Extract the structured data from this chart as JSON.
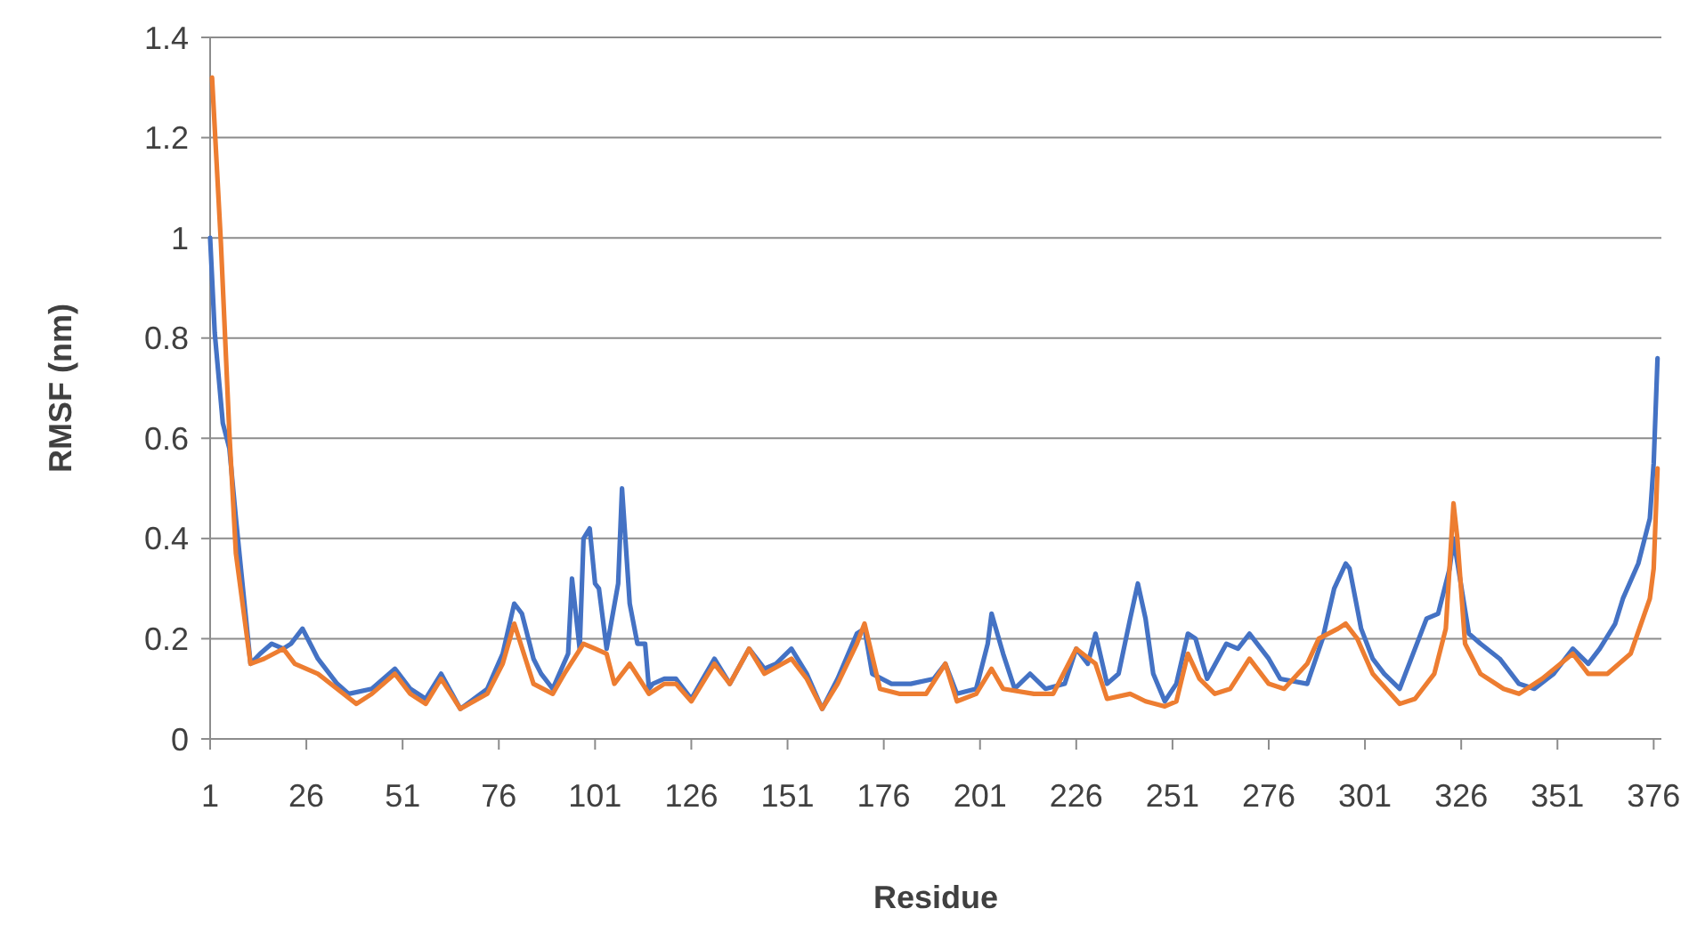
{
  "chart_data": {
    "type": "line",
    "xlabel": "Residue",
    "ylabel": "RMSF (nm)",
    "xlim": [
      1,
      378
    ],
    "xticks": [
      1,
      26,
      51,
      76,
      101,
      126,
      151,
      176,
      201,
      226,
      251,
      276,
      301,
      326,
      351,
      376
    ],
    "ylim": [
      0,
      1.4
    ],
    "yticks": [
      0,
      0.2,
      0.4,
      0.6,
      0.8,
      1,
      1.2,
      1.4
    ],
    "grid": "y",
    "marker": "none",
    "line_style": "solid",
    "series": [
      {
        "color": "#4472c4",
        "x": [
          1,
          2.2,
          4.3,
          6,
          7.7,
          9,
          11.5,
          14,
          17,
          20,
          22,
          25,
          27,
          29,
          34,
          37,
          43,
          49,
          53,
          57,
          61,
          66,
          73,
          77,
          80,
          82,
          85,
          87,
          90,
          94,
          95,
          97,
          98,
          99.6,
          101,
          102,
          104,
          107,
          108,
          110,
          112,
          114,
          115,
          116,
          119,
          122,
          126,
          132,
          136,
          141,
          145,
          148,
          152,
          156,
          160,
          164,
          169,
          171,
          173,
          178,
          183,
          189,
          192,
          195,
          200,
          203,
          204,
          207,
          210,
          214,
          218,
          223,
          226,
          229,
          231,
          234,
          237,
          240,
          242,
          244,
          246,
          249,
          252,
          255,
          257,
          260,
          265,
          268,
          271,
          276,
          279,
          286,
          290,
          293,
          296,
          297,
          300,
          303,
          306,
          310,
          314,
          317,
          320,
          323,
          324,
          328,
          331,
          336,
          341,
          345,
          350,
          355,
          359,
          362,
          366,
          368,
          372,
          375,
          376,
          377
        ],
        "values": [
          1.0,
          0.81,
          0.63,
          0.58,
          0.44,
          0.34,
          0.15,
          0.17,
          0.19,
          0.18,
          0.19,
          0.22,
          0.19,
          0.16,
          0.11,
          0.09,
          0.1,
          0.14,
          0.1,
          0.08,
          0.13,
          0.06,
          0.1,
          0.17,
          0.27,
          0.25,
          0.16,
          0.13,
          0.1,
          0.17,
          0.32,
          0.18,
          0.4,
          0.42,
          0.31,
          0.3,
          0.18,
          0.31,
          0.5,
          0.27,
          0.19,
          0.19,
          0.1,
          0.11,
          0.12,
          0.12,
          0.08,
          0.16,
          0.11,
          0.18,
          0.14,
          0.15,
          0.18,
          0.13,
          0.06,
          0.12,
          0.21,
          0.22,
          0.13,
          0.11,
          0.11,
          0.12,
          0.15,
          0.09,
          0.1,
          0.19,
          0.25,
          0.17,
          0.1,
          0.13,
          0.1,
          0.11,
          0.18,
          0.15,
          0.21,
          0.11,
          0.13,
          0.24,
          0.31,
          0.24,
          0.13,
          0.075,
          0.11,
          0.21,
          0.2,
          0.12,
          0.19,
          0.18,
          0.21,
          0.16,
          0.12,
          0.11,
          0.2,
          0.3,
          0.35,
          0.34,
          0.22,
          0.16,
          0.13,
          0.1,
          0.18,
          0.24,
          0.25,
          0.34,
          0.4,
          0.21,
          0.19,
          0.16,
          0.11,
          0.1,
          0.13,
          0.18,
          0.15,
          0.18,
          0.23,
          0.28,
          0.35,
          0.44,
          0.55,
          0.76
        ]
      },
      {
        "color": "#ed7d31",
        "x": [
          1.5,
          3.8,
          6,
          7.7,
          11.5,
          15,
          20,
          23,
          29,
          39,
          43,
          49,
          53,
          57,
          61,
          66,
          73,
          77,
          80,
          85,
          90,
          93,
          98,
          101,
          104,
          106,
          110,
          115,
          119,
          122,
          126,
          132,
          136,
          141,
          145,
          152,
          156,
          160,
          164,
          169,
          171,
          175,
          180,
          187,
          192,
          195,
          200,
          204,
          207,
          215,
          220,
          226,
          231,
          234,
          240,
          244,
          249,
          252,
          255,
          258,
          262,
          266,
          271,
          276,
          280,
          286,
          289,
          294,
          296,
          299,
          303,
          310,
          314,
          319,
          322,
          324,
          325,
          327,
          331,
          337,
          341,
          347,
          355,
          359,
          364,
          370,
          375,
          376,
          377
        ],
        "values": [
          1.32,
          0.99,
          0.61,
          0.37,
          0.15,
          0.16,
          0.18,
          0.15,
          0.13,
          0.07,
          0.09,
          0.13,
          0.09,
          0.07,
          0.12,
          0.06,
          0.09,
          0.15,
          0.23,
          0.11,
          0.09,
          0.13,
          0.19,
          0.18,
          0.17,
          0.11,
          0.15,
          0.09,
          0.11,
          0.11,
          0.075,
          0.15,
          0.11,
          0.18,
          0.13,
          0.16,
          0.12,
          0.06,
          0.11,
          0.19,
          0.23,
          0.1,
          0.09,
          0.09,
          0.15,
          0.075,
          0.09,
          0.14,
          0.1,
          0.09,
          0.09,
          0.18,
          0.15,
          0.08,
          0.09,
          0.075,
          0.065,
          0.075,
          0.17,
          0.12,
          0.09,
          0.1,
          0.16,
          0.11,
          0.1,
          0.15,
          0.2,
          0.22,
          0.23,
          0.2,
          0.13,
          0.07,
          0.08,
          0.13,
          0.22,
          0.47,
          0.4,
          0.19,
          0.13,
          0.1,
          0.09,
          0.12,
          0.17,
          0.13,
          0.13,
          0.17,
          0.28,
          0.34,
          0.54
        ]
      }
    ]
  }
}
